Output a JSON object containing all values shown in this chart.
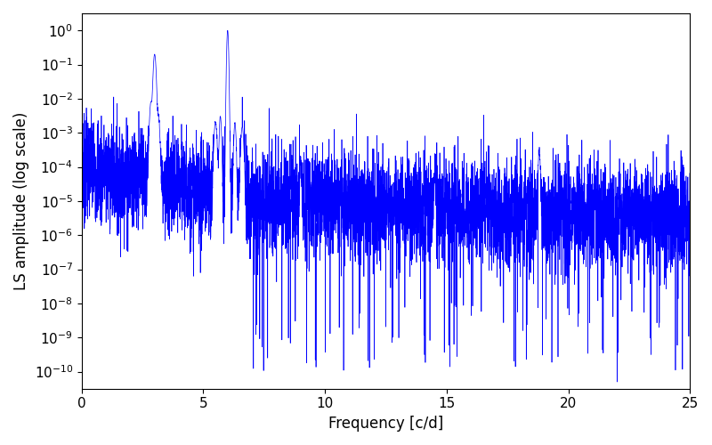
{
  "xlabel": "Frequency [c/d]",
  "ylabel": "LS amplitude (log scale)",
  "xlim": [
    0,
    25
  ],
  "line_color": "#0000ff",
  "line_width": 0.5,
  "background_color": "#ffffff",
  "freq_max": 25.0,
  "n_points": 6000,
  "seed": 7,
  "figsize": [
    8.0,
    5.0
  ],
  "dpi": 100
}
